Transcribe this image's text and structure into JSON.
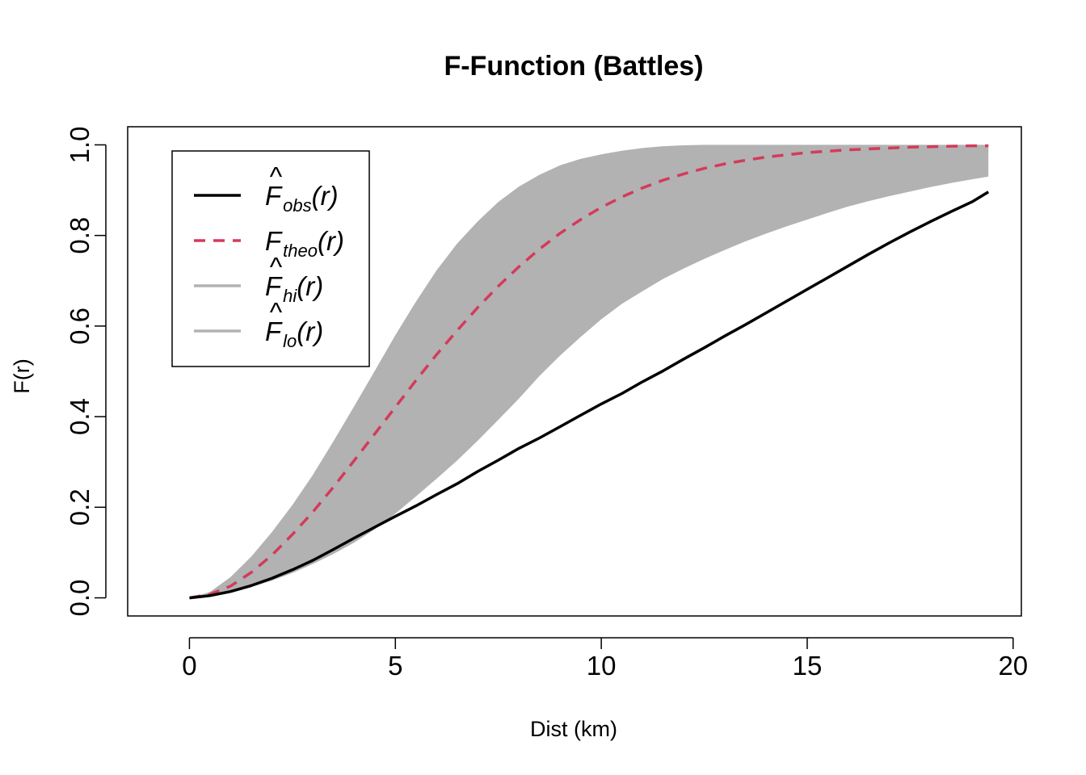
{
  "chart_data": {
    "type": "line",
    "title": "F-Function (Battles)",
    "xlabel": "Dist (km)",
    "ylabel": "F(r)",
    "xlim": [
      -1.5,
      20.2
    ],
    "ylim": [
      -0.04,
      1.04
    ],
    "xticks": [
      0,
      5,
      10,
      15,
      20
    ],
    "yticks": [
      0.0,
      0.2,
      0.4,
      0.6,
      0.8,
      1.0
    ],
    "xtick_labels": [
      "0",
      "5",
      "10",
      "15",
      "20"
    ],
    "ytick_labels": [
      "0.0",
      "0.2",
      "0.4",
      "0.6",
      "0.8",
      "1.0"
    ],
    "grid": false,
    "legend_position": "top-left",
    "legend": [
      {
        "base": "F",
        "hat": true,
        "sub": "obs",
        "arg": "(r)",
        "color": "#000000",
        "dash": "solid"
      },
      {
        "base": "F",
        "hat": false,
        "sub": "theo",
        "arg": "(r)",
        "color": "#D33B5A",
        "dash": "dashed"
      },
      {
        "base": "F",
        "hat": true,
        "sub": "hi",
        "arg": "(r)",
        "color": "#B2B2B2",
        "dash": "solid"
      },
      {
        "base": "F",
        "hat": true,
        "sub": "lo",
        "arg": "(r)",
        "color": "#B2B2B2",
        "dash": "solid"
      }
    ],
    "x": [
      0,
      0.5,
      1,
      1.5,
      2,
      2.5,
      3,
      3.5,
      4,
      4.5,
      5,
      5.5,
      6,
      6.5,
      7,
      7.5,
      8,
      8.5,
      9,
      9.5,
      10,
      10.5,
      11,
      11.5,
      12,
      12.5,
      13,
      13.5,
      14,
      14.5,
      15,
      15.5,
      16,
      16.5,
      17,
      17.5,
      18,
      18.5,
      19,
      19.4
    ],
    "series": [
      {
        "name": "obs",
        "color": "#000000",
        "style": "solid",
        "values": [
          0,
          0.005,
          0.014,
          0.027,
          0.043,
          0.062,
          0.083,
          0.107,
          0.132,
          0.156,
          0.18,
          0.203,
          0.228,
          0.252,
          0.279,
          0.304,
          0.33,
          0.353,
          0.378,
          0.403,
          0.428,
          0.451,
          0.477,
          0.501,
          0.527,
          0.552,
          0.578,
          0.603,
          0.629,
          0.655,
          0.681,
          0.707,
          0.733,
          0.759,
          0.784,
          0.808,
          0.831,
          0.853,
          0.874,
          0.896
        ]
      },
      {
        "name": "theo",
        "color": "#D33B5A",
        "style": "dashed",
        "values": [
          0,
          0.008,
          0.026,
          0.056,
          0.094,
          0.14,
          0.19,
          0.245,
          0.303,
          0.362,
          0.421,
          0.48,
          0.537,
          0.59,
          0.641,
          0.688,
          0.731,
          0.77,
          0.805,
          0.835,
          0.862,
          0.885,
          0.905,
          0.922,
          0.936,
          0.948,
          0.958,
          0.966,
          0.973,
          0.978,
          0.983,
          0.986,
          0.989,
          0.991,
          0.993,
          0.995,
          0.996,
          0.997,
          0.998,
          0.998
        ]
      },
      {
        "name": "hi",
        "color": "#B2B2B2",
        "style": "solid",
        "values": [
          0,
          0.013,
          0.046,
          0.091,
          0.145,
          0.205,
          0.272,
          0.346,
          0.423,
          0.501,
          0.58,
          0.654,
          0.723,
          0.782,
          0.831,
          0.874,
          0.908,
          0.934,
          0.955,
          0.969,
          0.979,
          0.987,
          0.993,
          0.997,
          0.999,
          1.0,
          1.0,
          1.0,
          1.0,
          1.0,
          1.0,
          1.0,
          1.0,
          1.0,
          1.0,
          1.0,
          1.0,
          1.0,
          1.0,
          1.0
        ]
      },
      {
        "name": "lo",
        "color": "#B2B2B2",
        "style": "solid",
        "values": [
          0,
          0.004,
          0.012,
          0.024,
          0.038,
          0.055,
          0.075,
          0.097,
          0.122,
          0.151,
          0.186,
          0.224,
          0.263,
          0.303,
          0.347,
          0.393,
          0.44,
          0.49,
          0.535,
          0.576,
          0.615,
          0.649,
          0.677,
          0.704,
          0.727,
          0.748,
          0.768,
          0.787,
          0.804,
          0.82,
          0.835,
          0.85,
          0.864,
          0.876,
          0.887,
          0.897,
          0.907,
          0.916,
          0.924,
          0.93
        ]
      }
    ]
  }
}
